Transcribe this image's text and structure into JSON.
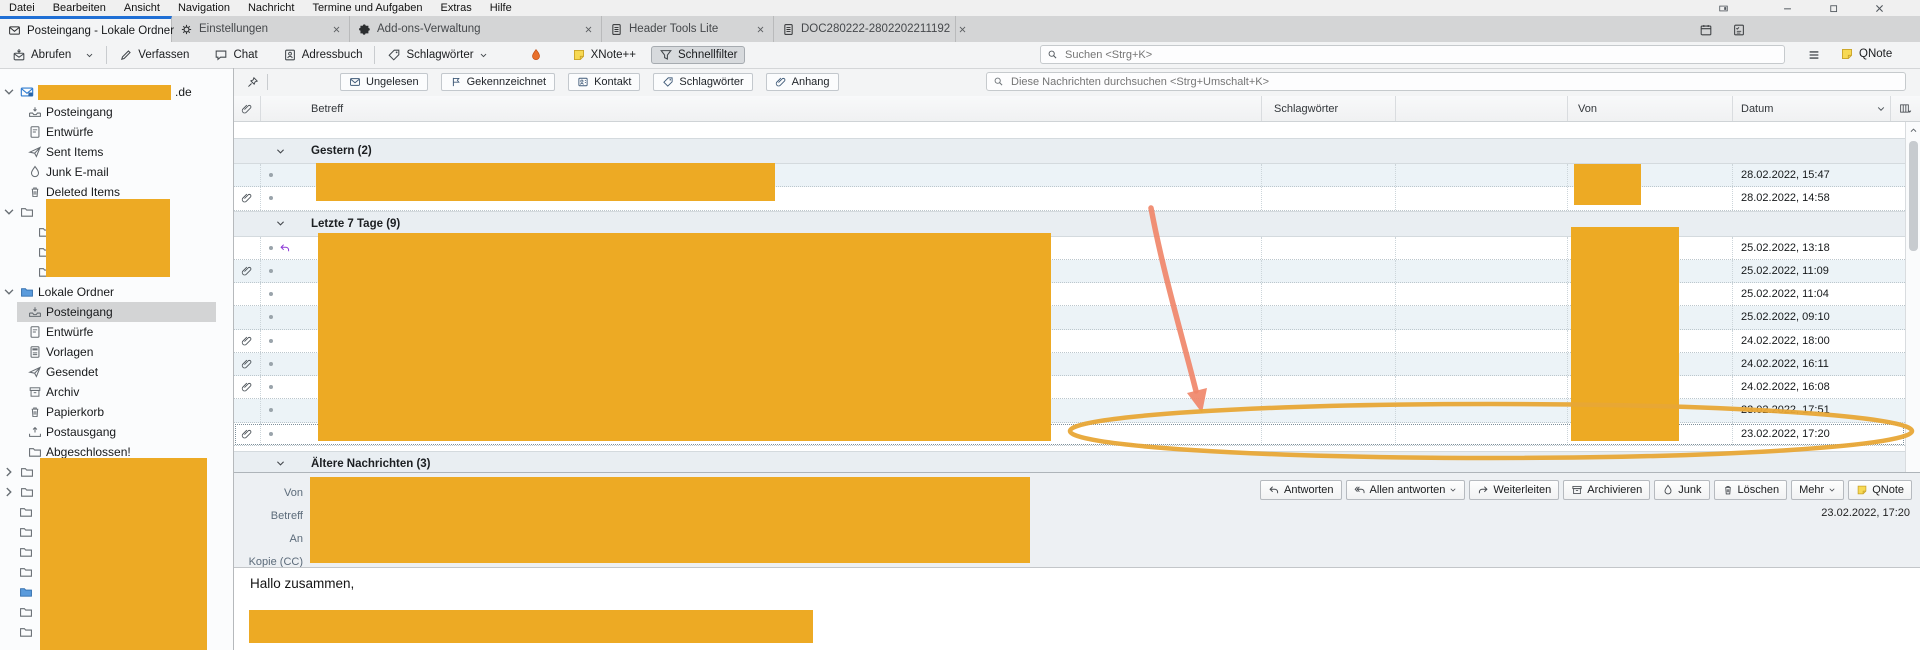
{
  "colors": {
    "redaction": "#edaa24",
    "ellipse": "#e8a636",
    "arrow": "#f0876a",
    "active_tab_accent": "#1f6fd5"
  },
  "menubar": {
    "items": [
      "Datei",
      "Bearbeiten",
      "Ansicht",
      "Navigation",
      "Nachricht",
      "Termine und Aufgaben",
      "Extras",
      "Hilfe"
    ]
  },
  "window_icons": [
    "display-icon",
    "minimize-icon",
    "maximize-icon",
    "close-icon"
  ],
  "tabs": [
    {
      "label": "Posteingang - Lokale Ordner",
      "icon": "mail-tab-icon",
      "active": true,
      "closable": false
    },
    {
      "label": "Einstellungen",
      "icon": "gear-icon",
      "active": false,
      "closable": true
    },
    {
      "label": "Add-ons-Verwaltung",
      "icon": "puzzle-icon",
      "active": false,
      "closable": true
    },
    {
      "label": "Header Tools Lite",
      "icon": "document-icon",
      "active": false,
      "closable": true
    },
    {
      "label": "DOC280222-2802202211192",
      "icon": "document-icon",
      "active": false,
      "closable": true
    }
  ],
  "tabbar_right": {
    "calendar": "calendar-icon",
    "tasks": "tasks-icon"
  },
  "toolbar": {
    "get_mail": "Abrufen",
    "write": "Verfassen",
    "chat": "Chat",
    "address_book": "Adressbuch",
    "tags": "Schlagwörter",
    "xnote": "XNote++",
    "quick_filter": "Schnellfilter",
    "search_placeholder": "Suchen <Strg+K>",
    "qnote": "QNote"
  },
  "quickfilter": {
    "buttons": [
      {
        "label": "Ungelesen",
        "icon": "envelope-icon"
      },
      {
        "label": "Gekennzeichnet",
        "icon": "flag-icon"
      },
      {
        "label": "Kontakt",
        "icon": "contact-icon"
      },
      {
        "label": "Schlagwörter",
        "icon": "tag-icon"
      },
      {
        "label": "Anhang",
        "icon": "paperclip-icon"
      }
    ],
    "search_placeholder": "Diese Nachrichten durchsuchen <Strg+Umschalt+K>"
  },
  "sidebar": {
    "rows": [
      {
        "type": "account",
        "icon": "mail-account-icon",
        "chevron": "down",
        "depth": 0,
        "redacted": true,
        "suffix": ".de"
      },
      {
        "icon": "inbox-icon",
        "label": "Posteingang",
        "depth": 1
      },
      {
        "icon": "draft-icon",
        "label": "Entwürfe",
        "depth": 1
      },
      {
        "icon": "sent-icon",
        "label": "Sent Items",
        "depth": 1
      },
      {
        "icon": "junk-icon",
        "label": "Junk E-mail",
        "depth": 1
      },
      {
        "icon": "trash-icon",
        "label": "Deleted Items",
        "depth": 1
      },
      {
        "icon": "folder-icon",
        "depth": 0,
        "chevron": "down",
        "redacted": true
      },
      {
        "icon": "folder-icon",
        "depth": 2,
        "redacted": true
      },
      {
        "icon": "folder-icon",
        "depth": 2,
        "redacted": true
      },
      {
        "icon": "folder-icon",
        "depth": 2,
        "redacted": true
      },
      {
        "icon": "folder-blue-icon",
        "label": "Lokale Ordner",
        "depth": 0,
        "chevron": "down"
      },
      {
        "icon": "inbox-icon",
        "label": "Posteingang",
        "depth": 1,
        "selected": true
      },
      {
        "icon": "draft-icon",
        "label": "Entwürfe",
        "depth": 1
      },
      {
        "icon": "template-icon",
        "label": "Vorlagen",
        "depth": 1
      },
      {
        "icon": "sent-icon",
        "label": "Gesendet",
        "depth": 1
      },
      {
        "icon": "archive-icon",
        "label": "Archiv",
        "depth": 1,
        "chevron": "right"
      },
      {
        "icon": "trash-icon",
        "label": "Papierkorb",
        "depth": 1
      },
      {
        "icon": "outbox-icon",
        "label": "Postausgang",
        "depth": 1
      },
      {
        "icon": "folder-icon",
        "label": "Abgeschlossen!",
        "depth": 1
      },
      {
        "icon": "folder-icon",
        "depth": 0,
        "chevron": "right",
        "redacted": true
      },
      {
        "icon": "folder-icon",
        "depth": 0,
        "chevron": "right",
        "redacted": true
      },
      {
        "icon": "folder-icon",
        "depth": 0,
        "redacted": true
      },
      {
        "icon": "folder-icon",
        "depth": 0,
        "redacted": true
      },
      {
        "icon": "folder-icon",
        "depth": 0,
        "redacted": true
      },
      {
        "icon": "folder-icon",
        "depth": 0,
        "redacted": true
      },
      {
        "icon": "folder-blue-icon",
        "depth": 0,
        "redacted": true
      },
      {
        "icon": "folder-icon",
        "depth": 0,
        "redacted": true
      },
      {
        "icon": "folder-icon",
        "depth": 0,
        "redacted": true
      }
    ]
  },
  "list": {
    "columns": {
      "subject": "Betreff",
      "tags": "Schlagwörter",
      "from": "Von",
      "date": "Datum"
    },
    "groups": [
      {
        "label": "Gestern (2)",
        "rows": [
          {
            "date": "28.02.2022, 15:47",
            "attachment": false,
            "shaded": true
          },
          {
            "date": "28.02.2022, 14:58",
            "attachment": true,
            "shaded": false
          }
        ]
      },
      {
        "label": "Letzte 7 Tage (9)",
        "rows": [
          {
            "date": "25.02.2022, 13:18",
            "attachment": false,
            "replied": true,
            "shaded": false
          },
          {
            "date": "25.02.2022, 11:09",
            "attachment": true,
            "shaded": true
          },
          {
            "date": "25.02.2022, 11:04",
            "attachment": false,
            "shaded": false
          },
          {
            "date": "25.02.2022, 09:10",
            "attachment": false,
            "shaded": true
          },
          {
            "date": "24.02.2022, 18:00",
            "attachment": true,
            "shaded": false
          },
          {
            "date": "24.02.2022, 16:11",
            "attachment": true,
            "shaded": true
          },
          {
            "date": "24.02.2022, 16:08",
            "attachment": true,
            "shaded": false
          },
          {
            "date": "23.02.2022, 17:51",
            "attachment": false,
            "shaded": true
          },
          {
            "date": "23.02.2022, 17:20",
            "attachment": true,
            "shaded": false,
            "selected": true
          }
        ]
      },
      {
        "label": "Ältere Nachrichten (3)",
        "rows": []
      }
    ]
  },
  "message": {
    "header_fields": [
      "Von",
      "Betreff",
      "An",
      "Kopie (CC)"
    ],
    "actions": [
      {
        "label": "Antworten",
        "icon": "reply-icon"
      },
      {
        "label": "Allen antworten",
        "icon": "reply-all-icon",
        "dropdown": true
      },
      {
        "label": "Weiterleiten",
        "icon": "forward-icon"
      },
      {
        "label": "Archivieren",
        "icon": "archive-icon"
      },
      {
        "label": "Junk",
        "icon": "flame-icon"
      },
      {
        "label": "Löschen",
        "icon": "trash-icon"
      },
      {
        "label": "Mehr",
        "dropdown": true
      },
      {
        "label": "QNote",
        "icon": "note-icon"
      }
    ],
    "date": "23.02.2022, 17:20",
    "body_text": "Hallo zusammen,"
  }
}
